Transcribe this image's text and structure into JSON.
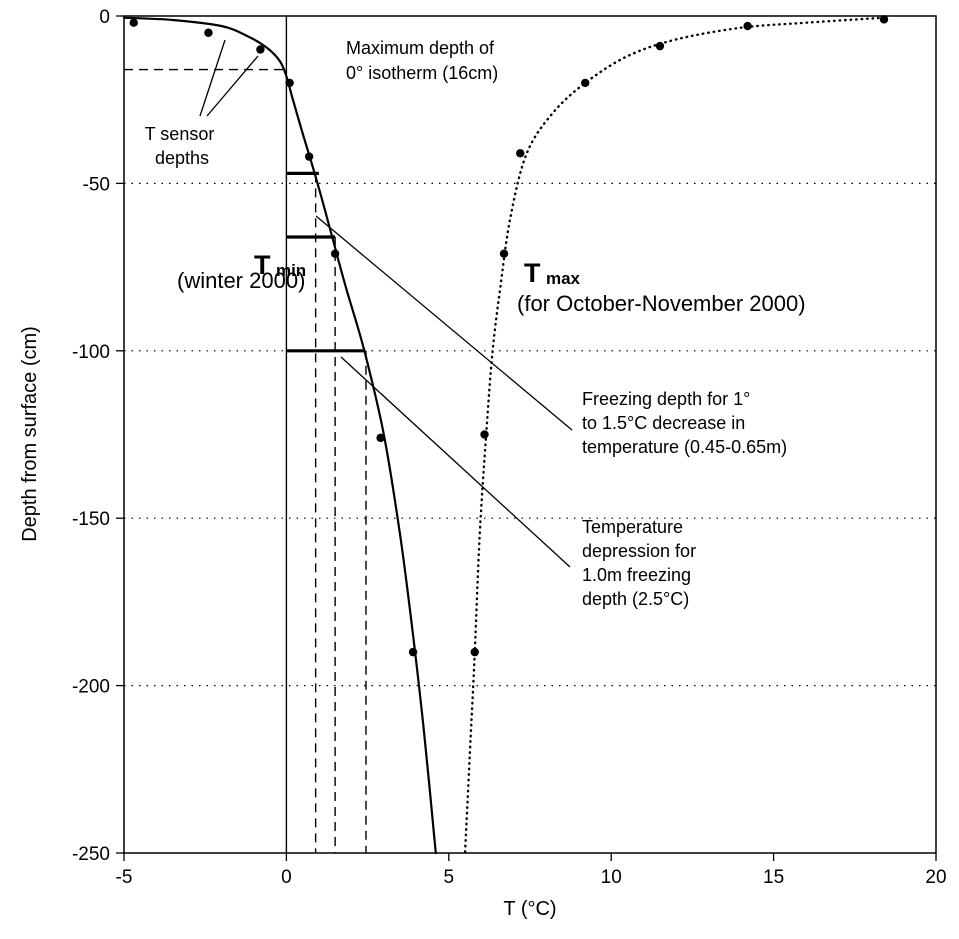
{
  "chart_data": {
    "type": "scatter",
    "xlabel": "T (°C)",
    "ylabel": "Depth from surface (cm)",
    "xlim": [
      -5,
      20
    ],
    "ylim": [
      -250,
      0
    ],
    "x_ticks": [
      -5,
      0,
      5,
      10,
      15,
      20
    ],
    "y_ticks": [
      0,
      -50,
      -100,
      -150,
      -200,
      -250
    ],
    "grid": "horizontal dotted lines at -50, -100, -150, -200",
    "legend": "none",
    "series": [
      {
        "name": "Tmin (winter 2000)",
        "style": "solid",
        "points": [
          {
            "x": -4.7,
            "y": -2
          },
          {
            "x": -2.4,
            "y": -5
          },
          {
            "x": -0.8,
            "y": -10
          },
          {
            "x": 0.1,
            "y": -20
          },
          {
            "x": 0.7,
            "y": -42
          },
          {
            "x": 1.5,
            "y": -71
          },
          {
            "x": 2.9,
            "y": -126
          },
          {
            "x": 3.9,
            "y": -190
          }
        ],
        "fit_curve": [
          {
            "x": -5.0,
            "y": -0.5
          },
          {
            "x": -3.5,
            "y": -1.2
          },
          {
            "x": -2.0,
            "y": -3.0
          },
          {
            "x": -1.2,
            "y": -6.0
          },
          {
            "x": -0.6,
            "y": -9.5
          },
          {
            "x": -0.2,
            "y": -13.5
          },
          {
            "x": 0.0,
            "y": -18.0
          },
          {
            "x": 0.2,
            "y": -25.0
          },
          {
            "x": 0.5,
            "y": -35.0
          },
          {
            "x": 0.9,
            "y": -48.0
          },
          {
            "x": 1.3,
            "y": -62.0
          },
          {
            "x": 1.8,
            "y": -80.0
          },
          {
            "x": 2.4,
            "y": -100.0
          },
          {
            "x": 3.0,
            "y": -125.0
          },
          {
            "x": 3.5,
            "y": -155.0
          },
          {
            "x": 3.9,
            "y": -185.0
          },
          {
            "x": 4.25,
            "y": -215.0
          },
          {
            "x": 4.6,
            "y": -250.0
          }
        ]
      },
      {
        "name": "Tmax (for October-November 2000)",
        "style": "dotted",
        "points": [
          {
            "x": 18.4,
            "y": -1
          },
          {
            "x": 14.2,
            "y": -3
          },
          {
            "x": 11.5,
            "y": -9
          },
          {
            "x": 9.2,
            "y": -20
          },
          {
            "x": 7.2,
            "y": -41
          },
          {
            "x": 6.7,
            "y": -71
          },
          {
            "x": 6.1,
            "y": -125
          },
          {
            "x": 5.8,
            "y": -190
          }
        ],
        "fit_curve": [
          {
            "x": 18.4,
            "y": -0.5
          },
          {
            "x": 16.0,
            "y": -2.0
          },
          {
            "x": 14.0,
            "y": -3.5
          },
          {
            "x": 12.0,
            "y": -7.0
          },
          {
            "x": 10.5,
            "y": -12.0
          },
          {
            "x": 9.2,
            "y": -20.0
          },
          {
            "x": 8.2,
            "y": -29.0
          },
          {
            "x": 7.4,
            "y": -41.0
          },
          {
            "x": 6.9,
            "y": -60.0
          },
          {
            "x": 6.6,
            "y": -80.0
          },
          {
            "x": 6.35,
            "y": -100.0
          },
          {
            "x": 6.15,
            "y": -125.0
          },
          {
            "x": 5.95,
            "y": -155.0
          },
          {
            "x": 5.8,
            "y": -190.0
          },
          {
            "x": 5.65,
            "y": -220.0
          },
          {
            "x": 5.5,
            "y": -250.0
          }
        ]
      }
    ],
    "reference_lines": {
      "zero_celsius_vertical": {
        "x": 0
      },
      "isotherm_depth_dashed": {
        "x_from": -5,
        "x_to": 0,
        "y": -16
      },
      "thick_horizontal_markers": [
        {
          "x_from": 0,
          "x_to": 1.0,
          "y": -47
        },
        {
          "x_from": 0,
          "x_to": 1.5,
          "y": -66
        },
        {
          "x_from": 0,
          "x_to": 2.4,
          "y": -100
        }
      ],
      "dashed_verticals": [
        {
          "x": 0.9,
          "y_from": -47,
          "y_to": -250
        },
        {
          "x": 1.5,
          "y_from": -66,
          "y_to": -250
        },
        {
          "x": 2.45,
          "y_from": -100,
          "y_to": -250
        }
      ]
    },
    "annotations": {
      "isotherm": [
        "Maximum depth of",
        "0° isotherm (16cm)"
      ],
      "sensor": [
        "T sensor",
        "depths"
      ],
      "freezing": [
        "Freezing depth for 1°",
        "to 1.5°C decrease in",
        "temperature (0.45-0.65m)"
      ],
      "depression": [
        "Temperature",
        "depression for",
        "1.0m freezing",
        "depth (2.5°C)"
      ],
      "tmin_main": "T",
      "tmin_sub": "min",
      "tmin_note": "(winter 2000)",
      "tmax_main": "T",
      "tmax_sub": "max",
      "tmax_note": "(for October-November 2000)"
    }
  }
}
